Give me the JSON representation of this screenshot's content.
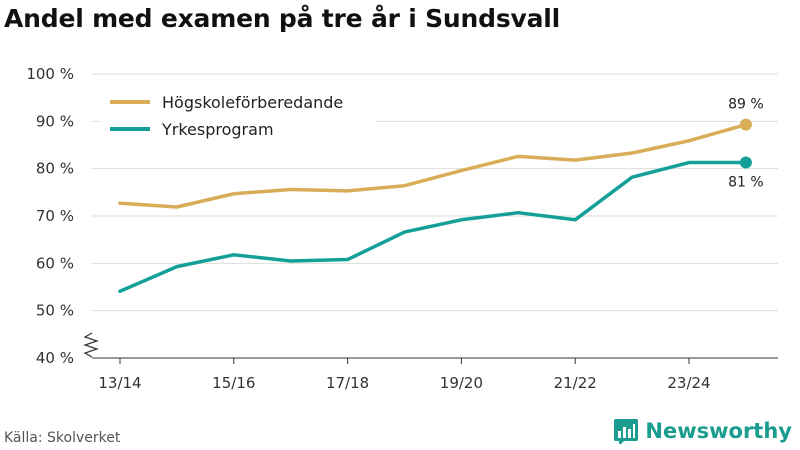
{
  "chart_data": {
    "type": "line",
    "title": "Andel med examen på tre år i Sundsvall",
    "x": [
      "13/14",
      "14/15",
      "15/16",
      "16/17",
      "17/18",
      "18/19",
      "19/20",
      "20/21",
      "21/22",
      "22/23",
      "23/24",
      "24/25"
    ],
    "x_tick_labels": [
      "13/14",
      "15/16",
      "17/18",
      "19/20",
      "21/22",
      "23/24"
    ],
    "series": [
      {
        "name": "Högskoleförberedande",
        "color": "#d9ad58",
        "values": [
          72.7,
          71.9,
          74.7,
          75.6,
          75.3,
          76.4,
          79.6,
          82.6,
          81.8,
          83.3,
          85.9,
          89.3
        ],
        "end_label": "89 %"
      },
      {
        "name": "Yrkesprogram",
        "color": "#14a098",
        "values": [
          54.1,
          59.3,
          61.8,
          60.5,
          60.8,
          66.6,
          69.2,
          70.7,
          69.2,
          78.2,
          81.3,
          81.3
        ],
        "end_label": "81 %"
      }
    ],
    "ylim": [
      40,
      100
    ],
    "y_ticks": [
      40,
      50,
      60,
      70,
      80,
      90,
      100
    ],
    "y_tick_labels": [
      "40 %",
      "50 %",
      "60 %",
      "70 %",
      "80 %",
      "90 %",
      "100 %"
    ],
    "y_axis_break": true,
    "grid": true,
    "legend_position": "top-left",
    "xlabel": "",
    "ylabel": ""
  },
  "footer": {
    "source": "Källa: Skolverket",
    "brand": "Newsworthy"
  },
  "colors": {
    "grid": "#dddddd",
    "axis": "#333333",
    "brand": "#1a9d8f"
  }
}
